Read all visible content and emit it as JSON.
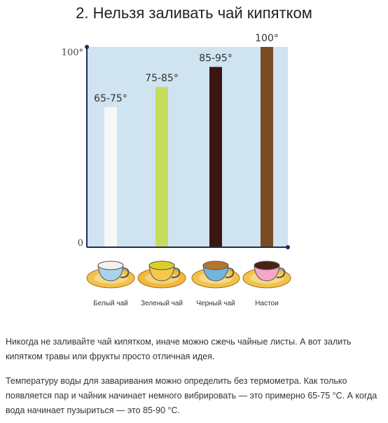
{
  "title": "2. Нельзя заливать чай кипятком",
  "chart_data": {
    "type": "bar",
    "categories": [
      "Белый чай",
      "Зеленый чай",
      "Черный чай",
      "Настои"
    ],
    "values": [
      70,
      80,
      90,
      100
    ],
    "value_labels": [
      "65-75°",
      "75-85°",
      "85-95°",
      "100°"
    ],
    "ylim": [
      0,
      100
    ],
    "y_ticks": [
      {
        "value": 0,
        "label": "0"
      },
      {
        "value": 100,
        "label": "100°"
      }
    ],
    "bar_colors": [
      "#f7f7f5",
      "#c5dd5e",
      "#3a1512",
      "#7a4a22"
    ],
    "background_color": "#cfe3f0",
    "grid": false
  },
  "paragraphs": [
    "Никогда не заливайте чай кипятком, иначе можно сжечь чайные листы. А вот залить кипятком травы или фрукты просто отличная идея.",
    "Температуру воды для заваривания можно определить без термометра. Как только появляется пар и чайник начинает немного вибрировать — это примерно 65-75 °С. А когда вода начинает пузыриться — это 85-90 °С."
  ],
  "cups": [
    {
      "name": "white-tea-cup-icon",
      "tea": "#f4f1ea",
      "cup": "#a8d2ea",
      "saucer": "#f2c34a"
    },
    {
      "name": "green-tea-cup-icon",
      "tea": "#d9cf2b",
      "cup": "#f5c84a",
      "saucer": "#f2b93a"
    },
    {
      "name": "black-tea-cup-icon",
      "tea": "#b5762c",
      "cup": "#6fb6dc",
      "saucer": "#f2c34a"
    },
    {
      "name": "infusion-cup-icon",
      "tea": "#4a2116",
      "cup": "#f3a8c8",
      "saucer": "#f2c34a"
    }
  ]
}
